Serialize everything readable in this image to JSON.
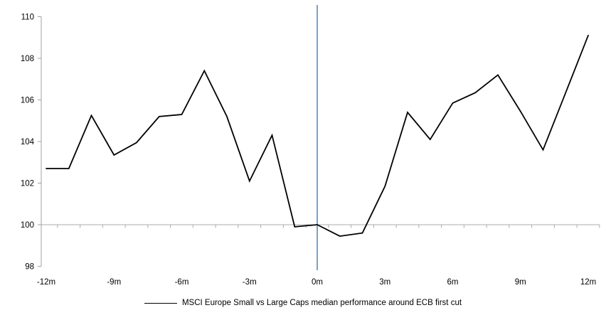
{
  "chart_data": {
    "type": "line",
    "title": "",
    "x": [
      -12,
      -11,
      -10,
      -9,
      -8,
      -7,
      -6,
      -5,
      -4,
      -3,
      -2,
      -1,
      0,
      1,
      2,
      3,
      4,
      5,
      6,
      7,
      8,
      9,
      10,
      11,
      12
    ],
    "series": [
      {
        "name": "MSCI Europe Small vs Large Caps median performance around ECB first cut",
        "values": [
          102.7,
          102.7,
          105.25,
          103.35,
          103.95,
          105.2,
          105.3,
          107.4,
          105.2,
          102.1,
          104.3,
          99.9,
          100.0,
          99.45,
          99.6,
          101.85,
          105.4,
          104.1,
          105.85,
          106.35,
          107.2,
          105.45,
          103.6,
          106.35,
          109.1
        ]
      }
    ],
    "ylim": [
      98,
      110
    ],
    "yticks": [
      98,
      100,
      102,
      104,
      106,
      108,
      110
    ],
    "xticks": [
      {
        "month": -12,
        "label": "-12m"
      },
      {
        "month": -9,
        "label": "-9m"
      },
      {
        "month": -6,
        "label": "-6m"
      },
      {
        "month": -3,
        "label": "-3m"
      },
      {
        "month": 0,
        "label": "0m"
      },
      {
        "month": 3,
        "label": "3m"
      },
      {
        "month": 6,
        "label": "6m"
      },
      {
        "month": 9,
        "label": "9m"
      },
      {
        "month": 12,
        "label": "12m"
      }
    ],
    "baseline_value": 100,
    "event_line_month": 0,
    "grid": "baseline-only",
    "legend_position": "bottom-center",
    "colors": {
      "series": "#000000",
      "event_line": "#75A3CD",
      "axis": "#A0A0A0",
      "baseline": "#ABABAB",
      "labels": "#000000"
    }
  },
  "legend": {
    "label": "MSCI Europe Small vs Large Caps median performance around ECB first cut"
  }
}
